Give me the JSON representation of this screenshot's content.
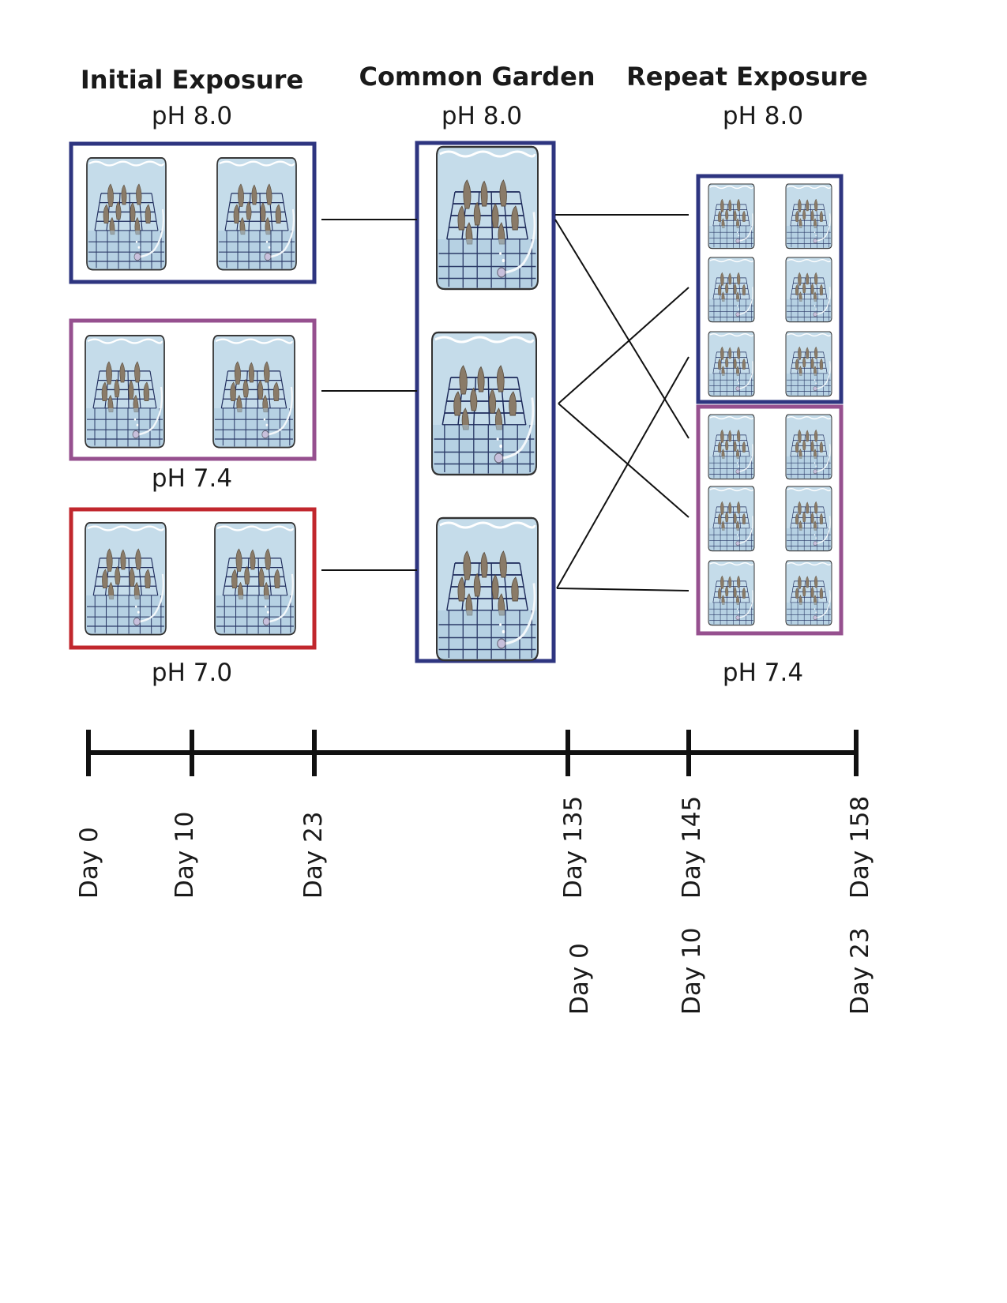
{
  "headers": {
    "initial": "Initial Exposure",
    "common": "Common Garden",
    "repeat": "Repeat Exposure"
  },
  "ph_labels": {
    "initial_top": "pH 8.0",
    "initial_mid": "pH 7.4",
    "initial_bottom": "pH 7.0",
    "common_top": "pH 8.0",
    "repeat_top": "pH 8.0",
    "repeat_bottom": "pH 7.4"
  },
  "colors": {
    "ph_8_0": "#2e3580",
    "ph_7_4": "#96508f",
    "ph_7_0": "#c1272d",
    "water": "#b9d6e6",
    "oyster": "#8a7b68",
    "grid": "#1d2a5a"
  },
  "timeline": {
    "days": [
      "Day 0",
      "Day 10",
      "Day 23",
      "Day 135",
      "Day 145",
      "Day 158"
    ],
    "repeat_days": [
      "Day 0",
      "Day 10",
      "Day 23"
    ]
  },
  "icons": {
    "tank": "oyster-tank-icon"
  }
}
